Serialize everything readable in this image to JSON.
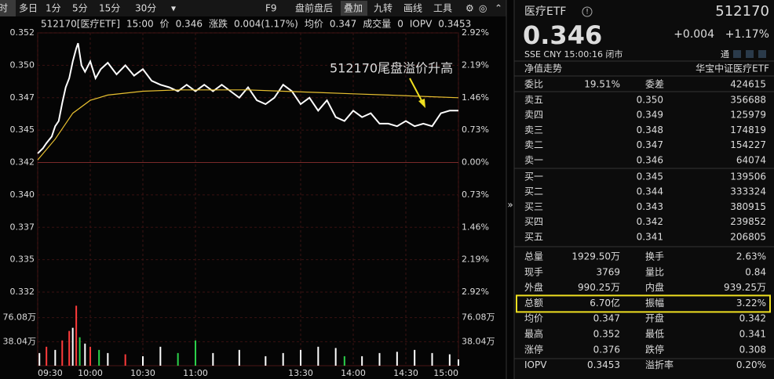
{
  "toolbar": {
    "tabs": [
      "时",
      "多日",
      "1分",
      "5分",
      "15分",
      "30分",
      "▾"
    ],
    "tools": [
      "F9",
      "盘前盘后",
      "叠加",
      "九转",
      "画线",
      "工具"
    ]
  },
  "info_bar": [
    {
      "text": "512170[医疗ETF]",
      "color": "#e0e0e0"
    },
    {
      "text": "15:00",
      "color": "#3cc8e8"
    },
    {
      "text": "价",
      "color": "#aaaaaa"
    },
    {
      "text": "0.346",
      "color": "#ff3b3b"
    },
    {
      "text": "涨跌",
      "color": "#aaaaaa"
    },
    {
      "text": "0.004(1.17%)",
      "color": "#ff3b3b"
    },
    {
      "text": "均价",
      "color": "#aaaaaa"
    },
    {
      "text": "0.347",
      "color": "#e8c030"
    },
    {
      "text": "成交量",
      "color": "#aaaaaa"
    },
    {
      "text": "0",
      "color": "#e0e0e0"
    },
    {
      "text": "IOPV",
      "color": "#aaaaaa"
    },
    {
      "text": "0.3453",
      "color": "#ff3b3b"
    }
  ],
  "annotation": "512170尾盘溢价升高",
  "chart_data": [
    {
      "type": "line",
      "xlim": [
        0,
        240
      ],
      "ylim": [
        0.332,
        0.352
      ],
      "xticks": [
        {
          "value": 0,
          "label": "09:30"
        },
        {
          "value": 30,
          "label": "10:00"
        },
        {
          "value": 60,
          "label": "10:30"
        },
        {
          "value": 90,
          "label": "11:00"
        },
        {
          "value": 150,
          "label": "13:30"
        },
        {
          "value": 180,
          "label": "14:00"
        },
        {
          "value": 210,
          "label": "14:30"
        },
        {
          "value": 240,
          "label": "15:00"
        }
      ],
      "yticks": [
        0.352,
        {
          "value": 0.3495,
          "label": "0.350"
        },
        0.347,
        {
          "value": 0.3445,
          "label": "0.345"
        },
        0.342,
        {
          "value": 0.3395,
          "label": "0.340"
        },
        0.337,
        {
          "value": 0.3345,
          "label": "0.335"
        },
        0.332
      ],
      "y2lim": [
        -2.92,
        2.92
      ],
      "y2ticks": [
        {
          "value": 2.92,
          "label": "2.92%"
        },
        {
          "value": 2.19,
          "label": "2.19%"
        },
        {
          "value": 1.46,
          "label": "1.46%"
        },
        {
          "value": 0.73,
          "label": "0.73%"
        },
        {
          "value": 0,
          "label": "0.00%"
        },
        {
          "value": -0.73,
          "label": "0.73%"
        },
        {
          "value": -1.46,
          "label": "1.46%"
        },
        {
          "value": -2.19,
          "label": "2.19%"
        },
        {
          "value": -2.92,
          "label": "2.92%"
        }
      ],
      "grid": true,
      "series": [
        {
          "name": "价",
          "color": "#ffffff",
          "x": [
            0,
            3,
            5,
            8,
            10,
            12,
            14,
            16,
            18,
            20,
            22,
            23,
            25,
            27,
            30,
            33,
            36,
            40,
            45,
            50,
            55,
            60,
            65,
            70,
            75,
            80,
            85,
            90,
            95,
            100,
            105,
            110,
            115,
            120,
            125,
            130,
            135,
            140,
            145,
            150,
            155,
            160,
            165,
            170,
            175,
            180,
            185,
            190,
            195,
            200,
            205,
            210,
            215,
            220,
            225,
            230,
            235,
            240
          ],
          "values": [
            0.3427,
            0.3431,
            0.3435,
            0.344,
            0.3448,
            0.3452,
            0.3466,
            0.3478,
            0.3485,
            0.3498,
            0.3508,
            0.3512,
            0.3495,
            0.349,
            0.3498,
            0.3485,
            0.3492,
            0.3497,
            0.3488,
            0.3495,
            0.3487,
            0.3492,
            0.3483,
            0.348,
            0.3478,
            0.3475,
            0.348,
            0.3475,
            0.348,
            0.3475,
            0.348,
            0.3475,
            0.347,
            0.3478,
            0.3468,
            0.3465,
            0.347,
            0.348,
            0.3475,
            0.3465,
            0.347,
            0.346,
            0.3468,
            0.3455,
            0.3452,
            0.346,
            0.3455,
            0.3458,
            0.345,
            0.345,
            0.3448,
            0.3452,
            0.3448,
            0.345,
            0.3448,
            0.3458,
            0.346,
            0.346
          ]
        },
        {
          "name": "均价",
          "color": "#e8c030",
          "x": [
            0,
            10,
            20,
            30,
            40,
            60,
            80,
            100,
            120,
            140,
            160,
            180,
            200,
            220,
            240
          ],
          "values": [
            0.3422,
            0.3438,
            0.3458,
            0.3468,
            0.3472,
            0.3475,
            0.3476,
            0.3476,
            0.3476,
            0.3475,
            0.3474,
            0.3473,
            0.3472,
            0.3471,
            0.347
          ]
        }
      ]
    },
    {
      "type": "bar",
      "xlim": [
        0,
        240
      ],
      "ylim": [
        0,
        114.12
      ],
      "yticks": [
        {
          "value": 76.08,
          "label": "76.08万"
        },
        {
          "value": 38.04,
          "label": "38.04万"
        }
      ],
      "x": [
        1,
        5,
        10,
        14,
        18,
        20,
        22,
        24,
        27,
        30,
        35,
        40,
        50,
        60,
        70,
        80,
        90,
        100,
        115,
        130,
        140,
        150,
        160,
        170,
        175,
        185,
        195,
        205,
        215,
        225,
        235,
        240
      ],
      "values": [
        20,
        30,
        25,
        40,
        55,
        60,
        95,
        45,
        35,
        30,
        25,
        20,
        18,
        15,
        30,
        20,
        40,
        20,
        25,
        15,
        20,
        25,
        30,
        28,
        15,
        15,
        20,
        22,
        25,
        20,
        18,
        10
      ],
      "colors": [
        "#ffffff",
        "#ff3b3b",
        "#ffffff",
        "#ff3b3b",
        "#ff3b3b",
        "#ffffff",
        "#ff3b3b",
        "#2bd14a",
        "#ffffff",
        "#ff3b3b",
        "#2bd14a",
        "#ffffff",
        "#ff3b3b",
        "#ffffff",
        "#ffffff",
        "#2bd14a",
        "#2bd14a",
        "#ffffff",
        "#ffffff",
        "#ffffff",
        "#ffffff",
        "#ffffff",
        "#ffffff",
        "#ffffff",
        "#2bd14a",
        "#ffffff",
        "#ffffff",
        "#ffffff",
        "#ffffff",
        "#ffffff",
        "#ffffff",
        "#ffffff"
      ]
    }
  ],
  "quote": {
    "name": "医疗ETF",
    "code": "512170",
    "price": "0.346",
    "change": "+0.004",
    "change_pct": "+1.17%",
    "status": "SSE  CNY  15:00:16  闭市",
    "tong": "通",
    "nav_label": "净值走势",
    "fund": "华宝中证医疗ETF",
    "ratio": [
      {
        "label": "委比",
        "value": "19.51%",
        "color": "#ff3b3b"
      },
      {
        "label": "委差",
        "value": "424615",
        "color": "#ff3b3b"
      }
    ],
    "order_book": [
      {
        "label": "卖五",
        "price": "0.350",
        "volume": "356688",
        "color": "#ff3b3b"
      },
      {
        "label": "卖四",
        "price": "0.349",
        "volume": "125979",
        "color": "#ff3b3b"
      },
      {
        "label": "卖三",
        "price": "0.348",
        "volume": "174819",
        "color": "#ff3b3b"
      },
      {
        "label": "卖二",
        "price": "0.347",
        "volume": "154227",
        "color": "#ff3b3b"
      },
      {
        "label": "卖一",
        "price": "0.346",
        "volume": "64074",
        "color": "#ff3b3b"
      },
      {
        "label": "买一",
        "price": "0.345",
        "volume": "139506",
        "color": "#ff3b3b"
      },
      {
        "label": "买二",
        "price": "0.344",
        "volume": "333324",
        "color": "#ff3b3b"
      },
      {
        "label": "买三",
        "price": "0.343",
        "volume": "380915",
        "color": "#ff3b3b"
      },
      {
        "label": "买四",
        "price": "0.342",
        "volume": "239852",
        "color": "#e0e0e0"
      },
      {
        "label": "买五",
        "price": "0.341",
        "volume": "206805",
        "color": "#2bd14a"
      }
    ],
    "stats": [
      [
        {
          "label": "总量",
          "value": "1929.50万",
          "color": "#e0e0e0"
        },
        {
          "label": "换手",
          "value": "2.63%",
          "color": "#e0e0e0"
        }
      ],
      [
        {
          "label": "现手",
          "value": "3769",
          "color": "#e0e0e0"
        },
        {
          "label": "量比",
          "value": "0.84",
          "color": "#e0e0e0"
        }
      ],
      [
        {
          "label": "外盘",
          "value": "990.25万",
          "color": "#ff3b3b"
        },
        {
          "label": "内盘",
          "value": "939.25万",
          "color": "#2bd14a"
        }
      ],
      [
        {
          "label": "总额",
          "value": "6.70亿",
          "color": "#e0e0e0"
        },
        {
          "label": "振幅",
          "value": "3.22%",
          "color": "#e0e0e0"
        }
      ],
      [
        {
          "label": "均价",
          "value": "0.347",
          "color": "#ff3b3b"
        },
        {
          "label": "开盘",
          "value": "0.342",
          "color": "#e0e0e0"
        }
      ],
      [
        {
          "label": "最高",
          "value": "0.352",
          "color": "#ff3b3b"
        },
        {
          "label": "最低",
          "value": "0.341",
          "color": "#2bd14a"
        }
      ],
      [
        {
          "label": "涨停",
          "value": "0.376",
          "color": "#ff3b3b"
        },
        {
          "label": "跌停",
          "value": "0.308",
          "color": "#2bd14a"
        }
      ],
      [
        {
          "label": "IOPV",
          "value": "0.3453",
          "color": "#e0e0e0"
        },
        {
          "label": "溢折率",
          "value": "0.20%",
          "color": "#ff3b3b"
        }
      ]
    ],
    "highlight_row": 3
  }
}
